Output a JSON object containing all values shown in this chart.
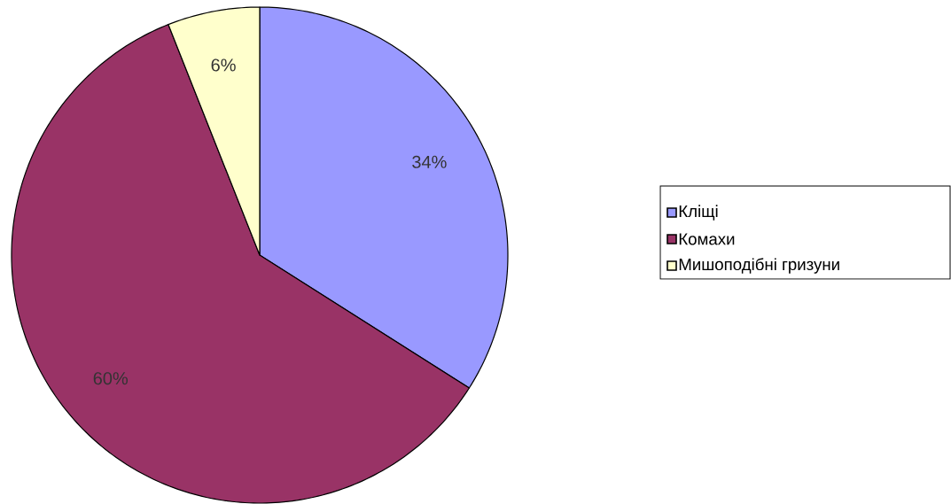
{
  "chart_data": {
    "type": "pie",
    "categories": [
      "Кліщі",
      "Комахи",
      "Мишоподібні гризуни"
    ],
    "values": [
      34,
      60,
      6
    ],
    "colors": [
      "#9999ff",
      "#993366",
      "#ffffcc"
    ],
    "value_labels": [
      "34%",
      "60%",
      "6%"
    ],
    "legend": "right"
  }
}
